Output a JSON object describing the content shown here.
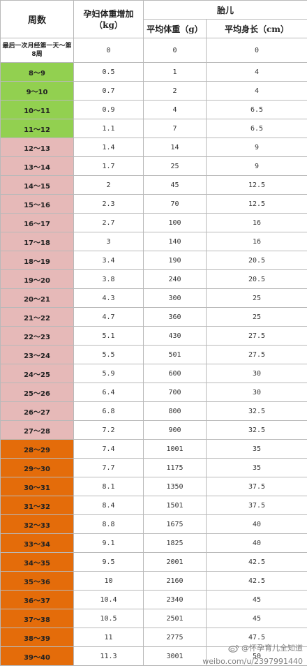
{
  "header": {
    "weeks": "周数",
    "gain_line1": "孕妇体重增加",
    "gain_line2": "（kg）",
    "fetus": "胎儿",
    "avg_weight": "平均体重（g）",
    "avg_length": "平均身长（cm）"
  },
  "colors": {
    "first_row": "#ffffff",
    "green": "#92d050",
    "pink": "#e6b9b8",
    "orange": "#e46c0a"
  },
  "rows": [
    {
      "weeks": "最后一次月经第一天～第8周",
      "gain": "0",
      "weight": "0",
      "length": "0",
      "group": "first_row"
    },
    {
      "weeks": "8～9",
      "gain": "0.5",
      "weight": "1",
      "length": "4",
      "group": "green"
    },
    {
      "weeks": "9～10",
      "gain": "0.7",
      "weight": "2",
      "length": "4",
      "group": "green"
    },
    {
      "weeks": "10～11",
      "gain": "0.9",
      "weight": "4",
      "length": "6.5",
      "group": "green"
    },
    {
      "weeks": "11～12",
      "gain": "1.1",
      "weight": "7",
      "length": "6.5",
      "group": "green"
    },
    {
      "weeks": "12～13",
      "gain": "1.4",
      "weight": "14",
      "length": "9",
      "group": "pink"
    },
    {
      "weeks": "13～14",
      "gain": "1.7",
      "weight": "25",
      "length": "9",
      "group": "pink"
    },
    {
      "weeks": "14～15",
      "gain": "2",
      "weight": "45",
      "length": "12.5",
      "group": "pink"
    },
    {
      "weeks": "15～16",
      "gain": "2.3",
      "weight": "70",
      "length": "12.5",
      "group": "pink"
    },
    {
      "weeks": "16～17",
      "gain": "2.7",
      "weight": "100",
      "length": "16",
      "group": "pink"
    },
    {
      "weeks": "17～18",
      "gain": "3",
      "weight": "140",
      "length": "16",
      "group": "pink"
    },
    {
      "weeks": "18～19",
      "gain": "3.4",
      "weight": "190",
      "length": "20.5",
      "group": "pink"
    },
    {
      "weeks": "19～20",
      "gain": "3.8",
      "weight": "240",
      "length": "20.5",
      "group": "pink"
    },
    {
      "weeks": "20～21",
      "gain": "4.3",
      "weight": "300",
      "length": "25",
      "group": "pink"
    },
    {
      "weeks": "21～22",
      "gain": "4.7",
      "weight": "360",
      "length": "25",
      "group": "pink"
    },
    {
      "weeks": "22～23",
      "gain": "5.1",
      "weight": "430",
      "length": "27.5",
      "group": "pink"
    },
    {
      "weeks": "23～24",
      "gain": "5.5",
      "weight": "501",
      "length": "27.5",
      "group": "pink"
    },
    {
      "weeks": "24～25",
      "gain": "5.9",
      "weight": "600",
      "length": "30",
      "group": "pink"
    },
    {
      "weeks": "25～26",
      "gain": "6.4",
      "weight": "700",
      "length": "30",
      "group": "pink"
    },
    {
      "weeks": "26～27",
      "gain": "6.8",
      "weight": "800",
      "length": "32.5",
      "group": "pink"
    },
    {
      "weeks": "27～28",
      "gain": "7.2",
      "weight": "900",
      "length": "32.5",
      "group": "pink"
    },
    {
      "weeks": "28～29",
      "gain": "7.4",
      "weight": "1001",
      "length": "35",
      "group": "orange"
    },
    {
      "weeks": "29～30",
      "gain": "7.7",
      "weight": "1175",
      "length": "35",
      "group": "orange"
    },
    {
      "weeks": "30～31",
      "gain": "8.1",
      "weight": "1350",
      "length": "37.5",
      "group": "orange"
    },
    {
      "weeks": "31～32",
      "gain": "8.4",
      "weight": "1501",
      "length": "37.5",
      "group": "orange"
    },
    {
      "weeks": "32～33",
      "gain": "8.8",
      "weight": "1675",
      "length": "40",
      "group": "orange"
    },
    {
      "weeks": "33～34",
      "gain": "9.1",
      "weight": "1825",
      "length": "40",
      "group": "orange"
    },
    {
      "weeks": "34～35",
      "gain": "9.5",
      "weight": "2001",
      "length": "42.5",
      "group": "orange"
    },
    {
      "weeks": "35～36",
      "gain": "10",
      "weight": "2160",
      "length": "42.5",
      "group": "orange"
    },
    {
      "weeks": "36～37",
      "gain": "10.4",
      "weight": "2340",
      "length": "45",
      "group": "orange"
    },
    {
      "weeks": "37～38",
      "gain": "10.5",
      "weight": "2501",
      "length": "45",
      "group": "orange"
    },
    {
      "weeks": "38～39",
      "gain": "11",
      "weight": "2775",
      "length": "47.5",
      "group": "orange"
    },
    {
      "weeks": "39～40",
      "gain": "11.3",
      "weight": "3001",
      "length": "50",
      "group": "orange"
    }
  ],
  "watermark": {
    "line1": "@怀孕育儿全知道",
    "line2": "weibo.com/u/2397991440"
  }
}
